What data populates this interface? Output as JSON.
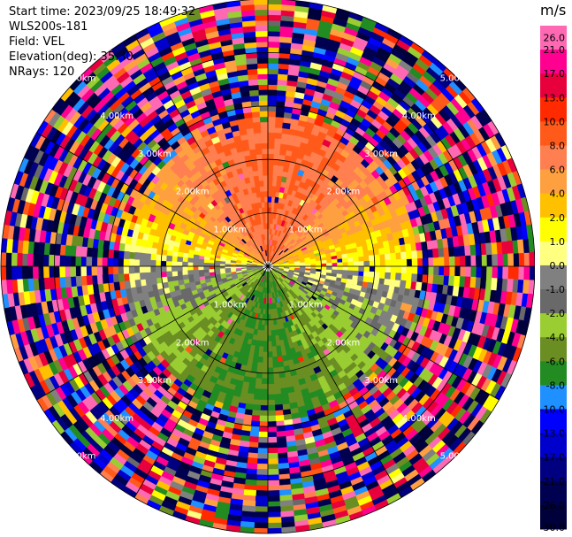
{
  "header": {
    "start_time": "Start time: 2023/09/25 18:49:32",
    "instrument": "WLS200s-181",
    "field": "Field: VEL",
    "elevation": "Elevation(deg): 35.30",
    "nrays": "NRays: 120"
  },
  "chart_data": {
    "type": "heatmap",
    "subtype": "polar-ppi",
    "field": "VEL",
    "nrays": 120,
    "max_range_km": 5.0,
    "range_rings_km": [
      1.0,
      2.0,
      3.0,
      4.0,
      5.0
    ],
    "ring_labels": [
      "1.00km",
      "2.00km",
      "3.00km",
      "4.00km",
      "5.00km"
    ],
    "colorbar": {
      "unit": "m/s",
      "ticks": [
        "26.0",
        "21.0",
        "17.0",
        "13.0",
        "10.0",
        "8.0",
        "6.0",
        "4.0",
        "2.0",
        "1.0",
        "0.0",
        "-1.0",
        "-2.0",
        "-4.0",
        "-6.0",
        "-8.0",
        "-10.0",
        "-13.0",
        "-17.0",
        "-21.0",
        "-26.0",
        "-30.0"
      ],
      "colors": [
        "#ff69b4",
        "#ff0090",
        "#e8003c",
        "#ff2a00",
        "#ff5a1a",
        "#ff7f50",
        "#ffa040",
        "#ffc000",
        "#ffff00",
        "#ffff80",
        "#808080",
        "#696969",
        "#9acd32",
        "#6b8e23",
        "#228b22",
        "#1e90ff",
        "#0000ff",
        "#0000cd",
        "#000080",
        "#000050",
        "#00003a"
      ]
    },
    "pattern": {
      "inner_north_m_s": 8.0,
      "inner_east_m_s": 1.0,
      "inner_south_m_s": -6.0,
      "inner_west_m_s": 0.0,
      "noise_beyond_km": 2.7
    }
  }
}
